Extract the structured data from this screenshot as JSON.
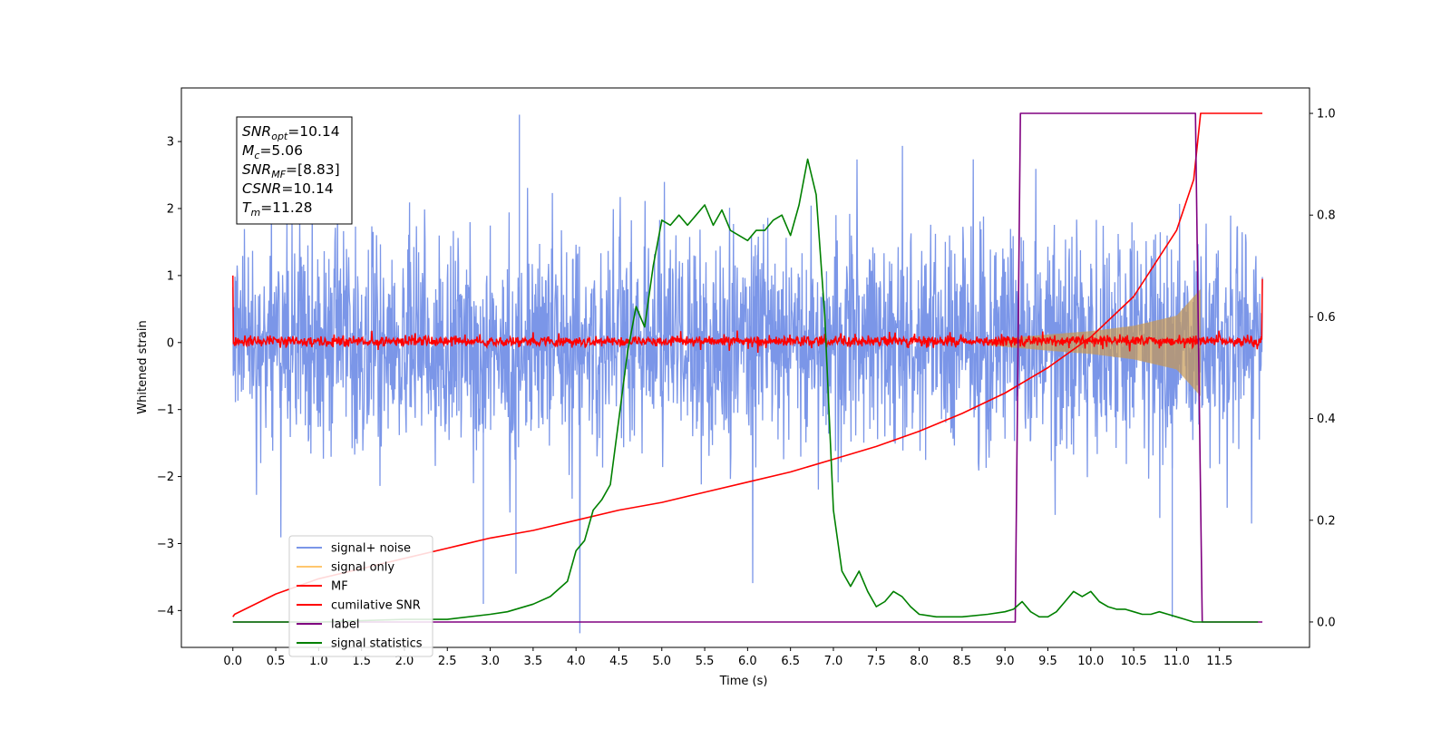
{
  "chart_data": {
    "type": "line",
    "xlabel": "Time (s)",
    "ylabel": "Whitened strain",
    "xlim": [
      -0.6,
      12.55
    ],
    "ylim": [
      -4.55,
      3.8
    ],
    "ylim_right": [
      -0.05,
      1.05
    ],
    "x_ticks": [
      "0.0",
      "0.5",
      "1.0",
      "1.5",
      "2.0",
      "2.5",
      "3.0",
      "3.5",
      "4.0",
      "4.5",
      "5.0",
      "5.5",
      "6.0",
      "6.5",
      "7.0",
      "7.5",
      "8.0",
      "8.5",
      "9.0",
      "9.5",
      "10.0",
      "10.5",
      "11.0",
      "11.5"
    ],
    "y_ticks": [
      "3",
      "2",
      "1",
      "0",
      "−1",
      "−2",
      "−3",
      "−4"
    ],
    "y_ticks_right": [
      "1.0",
      "0.8",
      "0.6",
      "0.4",
      "0.2",
      "0.0"
    ],
    "legend_position": "lower-left",
    "series": [
      {
        "name": "signal+ noise",
        "color": "#7b96e8",
        "axis": "left",
        "kind": "noise band",
        "approx_range": [
          -2.6,
          2.6
        ],
        "extreme_spikes": [
          [
            3.34,
            3.4
          ],
          [
            2.92,
            -3.9
          ],
          [
            3.3,
            -3.45
          ],
          [
            10.95,
            -4.1
          ]
        ]
      },
      {
        "name": "signal only",
        "color": "#ffc76e",
        "axis": "left",
        "kind": "chirp envelope",
        "envelope": {
          "x": [
            8.8,
            9.5,
            10.0,
            10.5,
            11.0,
            11.28
          ],
          "y": [
            0.04,
            0.12,
            0.17,
            0.25,
            0.4,
            0.8
          ]
        }
      },
      {
        "name": "MF",
        "color": "#ff0000",
        "axis": "left",
        "kind": "noise band",
        "approx_range": [
          -0.18,
          0.22
        ],
        "edges": {
          "start": 1.0,
          "end": 0.95
        }
      },
      {
        "name": "cumilative SNR",
        "color": "#ff0000",
        "axis": "right",
        "x": [
          0.0,
          0.02,
          0.5,
          1.0,
          1.5,
          2.0,
          2.5,
          3.0,
          3.5,
          4.0,
          4.5,
          5.0,
          5.5,
          6.0,
          6.5,
          7.0,
          7.5,
          8.0,
          8.5,
          9.0,
          9.5,
          10.0,
          10.5,
          11.0,
          11.2,
          11.28,
          11.3,
          12.0
        ],
        "y": [
          0.01,
          0.015,
          0.055,
          0.085,
          0.105,
          0.125,
          0.145,
          0.165,
          0.18,
          0.2,
          0.22,
          0.235,
          0.255,
          0.275,
          0.295,
          0.32,
          0.345,
          0.375,
          0.41,
          0.45,
          0.5,
          0.56,
          0.64,
          0.77,
          0.87,
          1.0,
          1.0,
          1.0
        ]
      },
      {
        "name": "label",
        "color": "#800080",
        "axis": "right",
        "x": [
          0.0,
          9.12,
          9.18,
          11.22,
          11.3,
          12.0
        ],
        "y": [
          0.0,
          0.0,
          1.0,
          1.0,
          0.0,
          0.0
        ]
      },
      {
        "name": "signal statistics",
        "color": "#008000",
        "axis": "right",
        "x": [
          0.0,
          1.0,
          2.0,
          2.5,
          3.0,
          3.2,
          3.5,
          3.7,
          3.9,
          4.0,
          4.1,
          4.2,
          4.3,
          4.4,
          4.5,
          4.6,
          4.7,
          4.8,
          4.9,
          5.0,
          5.1,
          5.2,
          5.3,
          5.4,
          5.5,
          5.6,
          5.7,
          5.8,
          5.9,
          6.0,
          6.1,
          6.2,
          6.3,
          6.4,
          6.5,
          6.6,
          6.7,
          6.8,
          6.9,
          7.0,
          7.1,
          7.2,
          7.3,
          7.4,
          7.5,
          7.6,
          7.7,
          7.8,
          7.9,
          8.0,
          8.2,
          8.5,
          8.8,
          9.0,
          9.1,
          9.2,
          9.3,
          9.4,
          9.5,
          9.6,
          9.7,
          9.8,
          9.9,
          10.0,
          10.1,
          10.2,
          10.3,
          10.4,
          10.5,
          10.6,
          10.7,
          10.8,
          10.9,
          11.0,
          11.1,
          11.2,
          11.5,
          11.95
        ],
        "y": [
          0.0,
          0.0,
          0.005,
          0.005,
          0.015,
          0.02,
          0.035,
          0.05,
          0.08,
          0.14,
          0.16,
          0.22,
          0.24,
          0.27,
          0.4,
          0.53,
          0.62,
          0.58,
          0.7,
          0.79,
          0.78,
          0.8,
          0.78,
          0.8,
          0.82,
          0.78,
          0.81,
          0.77,
          0.76,
          0.75,
          0.77,
          0.77,
          0.79,
          0.8,
          0.76,
          0.82,
          0.91,
          0.84,
          0.6,
          0.22,
          0.1,
          0.07,
          0.1,
          0.06,
          0.03,
          0.04,
          0.06,
          0.05,
          0.03,
          0.015,
          0.01,
          0.01,
          0.015,
          0.02,
          0.025,
          0.04,
          0.02,
          0.01,
          0.01,
          0.02,
          0.04,
          0.06,
          0.05,
          0.06,
          0.04,
          0.03,
          0.025,
          0.025,
          0.02,
          0.015,
          0.015,
          0.02,
          0.015,
          0.01,
          0.005,
          0.0,
          0.0,
          0.0
        ]
      }
    ],
    "annotation": {
      "lines": [
        {
          "sym": "SNR",
          "sub": "opt",
          "val": "=10.14"
        },
        {
          "sym": "M",
          "sub": "c",
          "val": "=5.06"
        },
        {
          "sym": "SNR",
          "sub": "MF",
          "val": "=[8.83]"
        },
        {
          "sym": "CSNR",
          "sub": "",
          "val": "=10.14"
        },
        {
          "sym": "T",
          "sub": "m",
          "val": "=11.28"
        }
      ]
    }
  }
}
